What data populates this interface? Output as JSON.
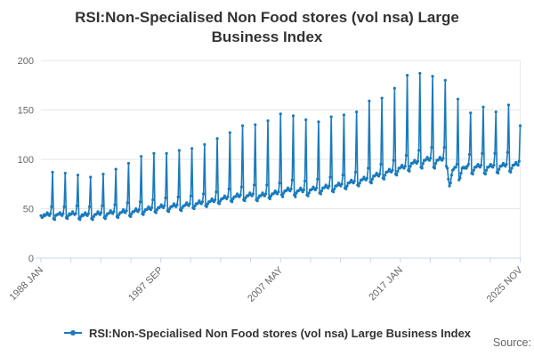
{
  "page": {
    "background": "#ffffff"
  },
  "header": {
    "title_full": "RSI:Non-Specialised Non Food stores (vol nsa) Large Business Index",
    "title_lines": [
      "RSI:Non-Specialised Non Food stores (vol nsa) Large",
      "Business Index"
    ]
  },
  "legend": {
    "label": "RSI:Non-Specialised Non Food stores (vol nsa) Large Business Index",
    "position": "bottom",
    "marker": "line-with-dot"
  },
  "footer": {
    "source_label": "Source:"
  },
  "colors": {
    "series_line": "#1a7abc",
    "grid_line": "#e6e6e6",
    "axis_line": "#ccd6eb",
    "tick_label": "#666666",
    "title_text": "#333333",
    "source_text": "#666666"
  },
  "chart_data": {
    "type": "line",
    "title": "RSI:Non-Specialised Non Food stores (vol nsa) Large Business Index",
    "xlabel": "",
    "ylabel": "",
    "x_start": "1988 JAN",
    "x_end": "2025 NOV",
    "x_tick_labels": [
      "1988 JAN",
      "1997 SEP",
      "2007 MAY",
      "2017 JAN",
      "2025 NOV"
    ],
    "x_minor_ticks_between_labels": 3,
    "y_ticks": [
      0,
      50,
      100,
      150,
      200
    ],
    "ylim": [
      0,
      200
    ],
    "grid": "horizontal-plus-right-border",
    "legend_position": "bottom",
    "marker": "circle",
    "frequency": "monthly",
    "series_name": "RSI:Non-Specialised Non Food stores (vol nsa) Large Business Index",
    "values_by_year": {
      "1988": [
        43,
        41,
        42,
        44,
        43,
        44,
        46,
        44,
        43,
        45,
        52,
        87
      ],
      "1989": [
        40,
        39,
        43,
        44,
        44,
        45,
        46,
        44,
        43,
        45,
        52,
        86
      ],
      "1990": [
        41,
        40,
        43,
        45,
        44,
        45,
        47,
        45,
        44,
        45,
        53,
        84
      ],
      "1991": [
        40,
        39,
        42,
        44,
        43,
        44,
        46,
        44,
        43,
        45,
        52,
        82
      ],
      "1992": [
        40,
        39,
        42,
        44,
        44,
        45,
        47,
        45,
        44,
        46,
        53,
        85
      ],
      "1993": [
        41,
        40,
        43,
        45,
        45,
        46,
        48,
        46,
        45,
        47,
        54,
        90
      ],
      "1994": [
        42,
        41,
        44,
        46,
        46,
        47,
        49,
        47,
        46,
        48,
        56,
        96
      ],
      "1995": [
        43,
        42,
        45,
        47,
        47,
        48,
        50,
        48,
        47,
        49,
        57,
        103
      ],
      "1996": [
        45,
        44,
        47,
        49,
        49,
        50,
        52,
        50,
        49,
        51,
        59,
        106
      ],
      "1997": [
        47,
        46,
        49,
        51,
        51,
        52,
        54,
        52,
        51,
        53,
        61,
        106
      ],
      "1998": [
        48,
        47,
        50,
        52,
        52,
        53,
        55,
        53,
        52,
        54,
        62,
        109
      ],
      "1999": [
        49,
        48,
        51,
        53,
        53,
        54,
        56,
        54,
        53,
        55,
        63,
        111
      ],
      "2000": [
        51,
        50,
        53,
        55,
        55,
        56,
        58,
        56,
        55,
        57,
        65,
        115
      ],
      "2001": [
        53,
        52,
        55,
        57,
        57,
        58,
        60,
        58,
        57,
        59,
        67,
        121
      ],
      "2002": [
        56,
        55,
        58,
        60,
        60,
        61,
        63,
        61,
        60,
        62,
        70,
        127
      ],
      "2003": [
        58,
        57,
        60,
        62,
        62,
        63,
        65,
        63,
        62,
        64,
        72,
        134
      ],
      "2004": [
        59,
        58,
        61,
        63,
        63,
        64,
        66,
        64,
        63,
        65,
        74,
        135
      ],
      "2005": [
        59,
        58,
        61,
        63,
        63,
        64,
        66,
        64,
        63,
        65,
        74,
        139
      ],
      "2006": [
        61,
        60,
        63,
        65,
        65,
        66,
        68,
        66,
        65,
        67,
        76,
        146
      ],
      "2007": [
        64,
        62,
        66,
        68,
        68,
        69,
        71,
        69,
        68,
        70,
        79,
        144
      ],
      "2008": [
        64,
        62,
        66,
        68,
        68,
        69,
        71,
        69,
        67,
        69,
        78,
        140
      ],
      "2009": [
        64,
        63,
        66,
        69,
        69,
        70,
        72,
        70,
        69,
        71,
        80,
        138
      ],
      "2010": [
        66,
        65,
        68,
        71,
        71,
        72,
        74,
        72,
        71,
        73,
        82,
        143
      ],
      "2011": [
        68,
        67,
        70,
        73,
        73,
        74,
        76,
        74,
        73,
        75,
        84,
        145
      ],
      "2012": [
        71,
        70,
        73,
        76,
        76,
        77,
        79,
        77,
        76,
        78,
        87,
        148
      ],
      "2013": [
        74,
        73,
        76,
        79,
        79,
        80,
        82,
        80,
        79,
        81,
        91,
        159
      ],
      "2014": [
        77,
        76,
        80,
        83,
        83,
        84,
        86,
        84,
        83,
        85,
        95,
        162
      ],
      "2015": [
        81,
        80,
        84,
        87,
        87,
        88,
        90,
        88,
        87,
        89,
        99,
        172
      ],
      "2016": [
        85,
        84,
        88,
        91,
        91,
        92,
        94,
        92,
        91,
        93,
        104,
        185
      ],
      "2017": [
        89,
        88,
        93,
        96,
        96,
        97,
        99,
        97,
        96,
        98,
        109,
        187
      ],
      "2018": [
        92,
        91,
        96,
        99,
        99,
        100,
        102,
        100,
        99,
        101,
        112,
        184
      ],
      "2019": [
        92,
        91,
        96,
        99,
        99,
        100,
        102,
        100,
        99,
        101,
        112,
        180
      ],
      "2020": [
        93,
        91,
        80,
        73,
        76,
        84,
        89,
        90,
        92,
        92,
        95,
        161
      ],
      "2021": [
        79,
        81,
        86,
        91,
        92,
        91,
        92,
        91,
        93,
        95,
        105,
        147
      ],
      "2022": [
        86,
        85,
        89,
        92,
        92,
        93,
        95,
        93,
        92,
        94,
        106,
        153
      ],
      "2023": [
        86,
        85,
        89,
        92,
        92,
        93,
        95,
        93,
        92,
        94,
        106,
        148
      ],
      "2024": [
        87,
        86,
        90,
        93,
        93,
        94,
        96,
        94,
        93,
        95,
        107,
        155
      ],
      "2025": [
        88,
        87,
        91,
        94,
        94,
        95,
        97,
        95,
        94,
        98,
        134
      ]
    }
  }
}
